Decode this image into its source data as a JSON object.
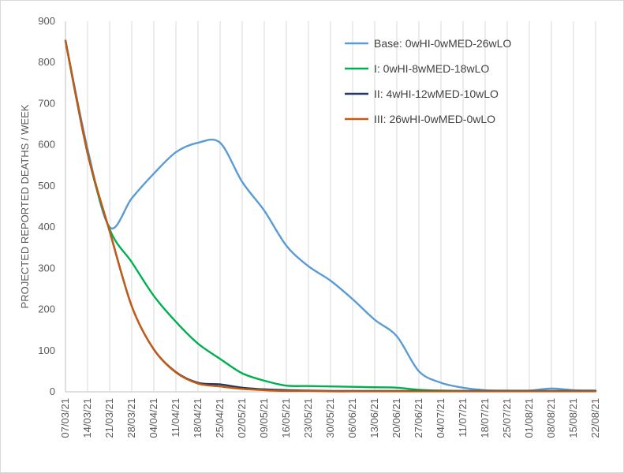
{
  "chart_data": {
    "type": "line",
    "title": "",
    "xlabel": "",
    "ylabel": "PROJECTED REPORTED DEATHS / WEEK",
    "ylim": [
      0,
      900
    ],
    "yticks": [
      0,
      100,
      200,
      300,
      400,
      500,
      600,
      700,
      800,
      900
    ],
    "grid": "vertical",
    "legend_position": "top-right",
    "x": [
      "07/03/21",
      "14/03/21",
      "21/03/21",
      "28/03/21",
      "04/04/21",
      "11/04/21",
      "18/04/21",
      "25/04/21",
      "02/05/21",
      "09/05/21",
      "16/05/21",
      "23/05/21",
      "30/05/21",
      "06/06/21",
      "13/06/21",
      "20/06/21",
      "27/06/21",
      "04/07/21",
      "11/07/21",
      "18/07/21",
      "25/07/21",
      "01/08/21",
      "08/08/21",
      "15/08/21",
      "22/08/21"
    ],
    "series": [
      {
        "name": "Base: 0wHI-0wMED-26wLO",
        "color": "#5b9bd5",
        "values": [
          853,
          590,
          400,
          470,
          530,
          582,
          605,
          605,
          510,
          440,
          355,
          305,
          270,
          225,
          175,
          135,
          50,
          22,
          10,
          4,
          3,
          3,
          8,
          4,
          3
        ]
      },
      {
        "name": "I: 0wHI-8wMED-18wLO",
        "color": "#00b050",
        "values": [
          853,
          580,
          395,
          315,
          233,
          170,
          117,
          80,
          45,
          27,
          15,
          14,
          13,
          12,
          11,
          10,
          5,
          3,
          2,
          2,
          2,
          2,
          2,
          2,
          2
        ]
      },
      {
        "name": "II: 4wHI-12wMED-10wLO",
        "color": "#203864",
        "values": [
          853,
          580,
          390,
          208,
          103,
          48,
          22,
          18,
          10,
          6,
          4,
          3,
          2,
          2,
          2,
          2,
          2,
          2,
          2,
          2,
          2,
          2,
          2,
          2,
          2
        ]
      },
      {
        "name": "III: 26wHI-0wMED-0wLO",
        "color": "#c55a11",
        "values": [
          853,
          580,
          390,
          208,
          103,
          47,
          20,
          13,
          7,
          4,
          2,
          2,
          1,
          1,
          1,
          1,
          1,
          1,
          1,
          1,
          1,
          1,
          1,
          1,
          1
        ]
      }
    ]
  }
}
